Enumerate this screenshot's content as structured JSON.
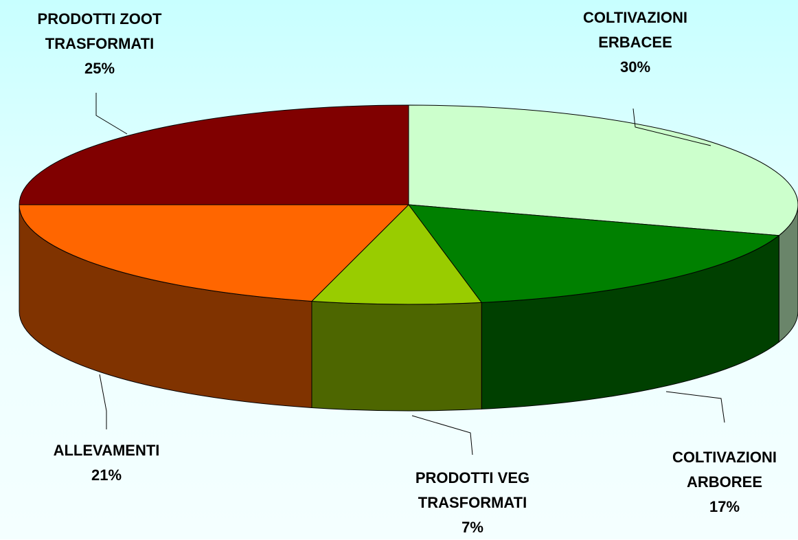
{
  "chart_data": {
    "type": "pie",
    "categories": [
      "COLTIVAZIONI\nERBACEE",
      "COLTIVAZIONI\nARBOREE",
      "PRODOTTI VEG\nTRASFORMATI",
      "ALLEVAMENTI",
      "PRODOTTI ZOOT\nTRASFORMATI"
    ],
    "values": [
      30,
      17,
      7,
      21,
      25
    ],
    "value_labels": [
      "30%",
      "17%",
      "7%",
      "21%",
      "25%"
    ],
    "colors": [
      "#ccffcc",
      "#008000",
      "#99cc00",
      "#ff6600",
      "#800000"
    ]
  }
}
